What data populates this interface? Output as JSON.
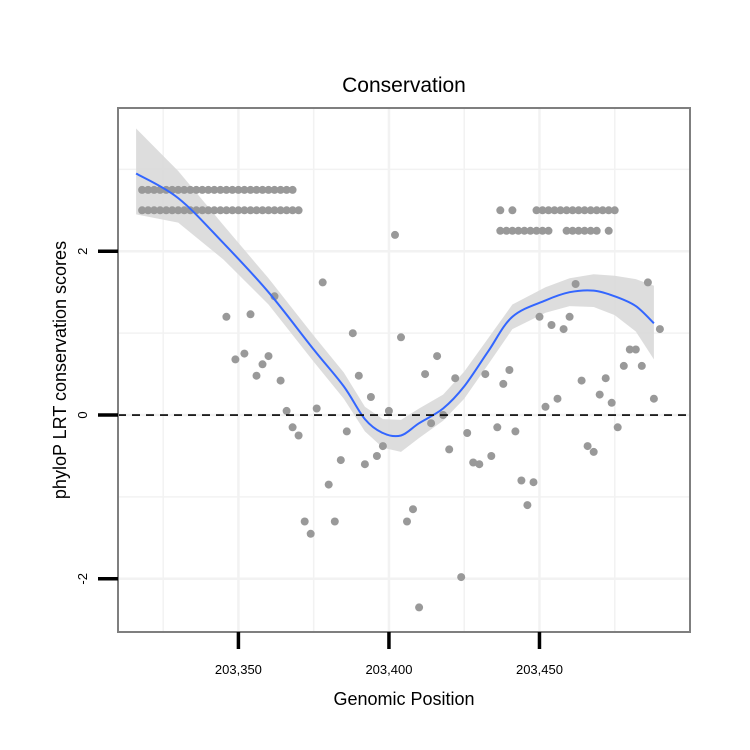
{
  "chart_data": {
    "type": "scatter",
    "title": "Conservation",
    "xlabel": "Genomic Position",
    "ylabel": "phyloP LRT conservation scores",
    "xlim": [
      203310,
      203500
    ],
    "ylim": [
      -2.65,
      3.75
    ],
    "x_ticks": [
      {
        "value": 203350,
        "label": "203,350"
      },
      {
        "value": 203400,
        "label": "203,400"
      },
      {
        "value": 203450,
        "label": "203,450"
      }
    ],
    "y_ticks": [
      {
        "value": -2,
        "label": "-2"
      },
      {
        "value": 0,
        "label": "0"
      },
      {
        "value": 2,
        "label": "2"
      }
    ],
    "reference_line": {
      "y": 0,
      "style": "dashed"
    },
    "grid": true,
    "colors": {
      "points": "#999999",
      "smooth_line": "#3366ff",
      "ribbon": "#d9d9d9",
      "panel_border": "#7f7f7f",
      "grid": "#f2f2f2",
      "reference_line": "#000000"
    },
    "series": [
      {
        "name": "observed",
        "type": "points",
        "x": [
          203318,
          203320,
          203322,
          203324,
          203326,
          203328,
          203330,
          203332,
          203334,
          203336,
          203338,
          203340,
          203342,
          203344,
          203346,
          203348,
          203350,
          203352,
          203354,
          203356,
          203358,
          203360,
          203362,
          203364,
          203366,
          203368,
          203370,
          203318,
          203320,
          203322,
          203324,
          203326,
          203328,
          203330,
          203332,
          203334,
          203336,
          203338,
          203340,
          203342,
          203344,
          203346,
          203348,
          203350,
          203352,
          203354,
          203356,
          203358,
          203360,
          203362,
          203364,
          203366,
          203368,
          203437,
          203441,
          203449,
          203451,
          203453,
          203455,
          203457,
          203459,
          203461,
          203463,
          203465,
          203467,
          203469,
          203471,
          203473,
          203475,
          203437,
          203439,
          203441,
          203443,
          203445,
          203447,
          203449,
          203451,
          203453,
          203459,
          203461,
          203463,
          203465,
          203467,
          203469,
          203473,
          203346,
          203349,
          203352,
          203354,
          203356,
          203358,
          203360,
          203362,
          203364,
          203366,
          203368,
          203370,
          203372,
          203374,
          203376,
          203378,
          203380,
          203382,
          203384,
          203386,
          203388,
          203390,
          203392,
          203394,
          203396,
          203398,
          203400,
          203402,
          203404,
          203406,
          203408,
          203410,
          203412,
          203414,
          203416,
          203418,
          203420,
          203422,
          203424,
          203426,
          203428,
          203430,
          203432,
          203434,
          203436,
          203438,
          203440,
          203442,
          203444,
          203446,
          203448,
          203450,
          203452,
          203454,
          203456,
          203458,
          203460,
          203462,
          203464,
          203466,
          203468,
          203470,
          203472,
          203474,
          203476,
          203478,
          203480,
          203482,
          203484,
          203486,
          203488,
          203490
        ],
        "y": [
          2.5,
          2.5,
          2.5,
          2.5,
          2.5,
          2.5,
          2.5,
          2.5,
          2.5,
          2.5,
          2.5,
          2.5,
          2.5,
          2.5,
          2.5,
          2.5,
          2.5,
          2.5,
          2.5,
          2.5,
          2.5,
          2.5,
          2.5,
          2.5,
          2.5,
          2.5,
          2.5,
          2.75,
          2.75,
          2.75,
          2.75,
          2.75,
          2.75,
          2.75,
          2.75,
          2.75,
          2.75,
          2.75,
          2.75,
          2.75,
          2.75,
          2.75,
          2.75,
          2.75,
          2.75,
          2.75,
          2.75,
          2.75,
          2.75,
          2.75,
          2.75,
          2.75,
          2.75,
          2.5,
          2.5,
          2.5,
          2.5,
          2.5,
          2.5,
          2.5,
          2.5,
          2.5,
          2.5,
          2.5,
          2.5,
          2.5,
          2.5,
          2.5,
          2.5,
          2.25,
          2.25,
          2.25,
          2.25,
          2.25,
          2.25,
          2.25,
          2.25,
          2.25,
          2.25,
          2.25,
          2.25,
          2.25,
          2.25,
          2.25,
          2.25,
          1.2,
          0.68,
          0.75,
          1.23,
          0.48,
          0.62,
          0.72,
          1.45,
          0.42,
          0.05,
          -0.15,
          -0.25,
          -1.3,
          -1.45,
          0.08,
          1.62,
          -0.85,
          -1.3,
          -0.55,
          -0.2,
          1.0,
          0.48,
          -0.6,
          0.22,
          -0.5,
          -0.38,
          0.05,
          2.2,
          0.95,
          -1.3,
          -1.15,
          -2.35,
          0.5,
          -0.1,
          0.72,
          0.0,
          -0.42,
          0.45,
          -1.98,
          -0.22,
          -0.58,
          -0.6,
          0.5,
          -0.5,
          -0.15,
          0.38,
          0.55,
          -0.2,
          -0.8,
          -1.1,
          -0.82,
          1.2,
          0.1,
          1.1,
          0.2,
          1.05,
          1.2,
          1.6,
          0.42,
          -0.38,
          -0.45,
          0.25,
          0.45,
          0.15,
          -0.15,
          0.6,
          0.8,
          0.8,
          0.6,
          1.62,
          0.2,
          1.05
        ]
      },
      {
        "name": "loess fit",
        "type": "line",
        "x": [
          203316,
          203330,
          203345,
          203360,
          203375,
          203385,
          203392,
          203398,
          203404,
          203410,
          203418,
          203425,
          203433,
          203441,
          203452,
          203460,
          203468,
          203475,
          203482,
          203488
        ],
        "y": [
          2.95,
          2.65,
          2.1,
          1.5,
          0.8,
          0.35,
          -0.05,
          -0.22,
          -0.25,
          -0.1,
          0.08,
          0.35,
          0.78,
          1.2,
          1.4,
          1.5,
          1.52,
          1.45,
          1.33,
          1.12
        ],
        "ribbon_lower": [
          2.45,
          2.35,
          1.9,
          1.35,
          0.65,
          0.2,
          -0.2,
          -0.4,
          -0.45,
          -0.28,
          -0.07,
          0.2,
          0.62,
          1.05,
          1.25,
          1.33,
          1.32,
          1.22,
          1.02,
          0.68
        ],
        "ribbon_upper": [
          3.5,
          2.98,
          2.32,
          1.67,
          0.97,
          0.52,
          0.1,
          -0.05,
          -0.06,
          0.08,
          0.25,
          0.53,
          0.94,
          1.35,
          1.56,
          1.67,
          1.72,
          1.7,
          1.66,
          1.58
        ]
      }
    ]
  }
}
